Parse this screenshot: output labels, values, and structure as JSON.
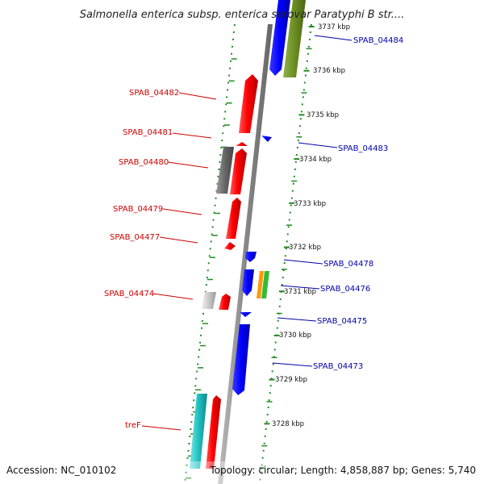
{
  "title": "Salmonella enterica subsp. enterica serovar Paratyphi B str....",
  "footer": {
    "accession": "Accession: NC_010102",
    "stats": "Topology: circular; Length: 4,858,887 bp; Genes: 5,740"
  },
  "colors": {
    "forward_strand": "#ff0000",
    "reverse_strand": "#0000ff",
    "forward_label": "#cc0000",
    "reverse_label": "#0000aa",
    "tick": "#228b22",
    "axis": "#888888",
    "olive": "#6b8e23",
    "cyan": "#20c0c0",
    "gray": "#666666",
    "light_gray": "#c8c8c8",
    "orange": "#ff9900",
    "green": "#33bb33"
  },
  "scale": {
    "unit": "kbp",
    "labels": [
      "3737 kbp",
      "3736 kbp",
      "3735 kbp",
      "3734 kbp",
      "3733 kbp",
      "3732 kbp",
      "3731 kbp",
      "3730 kbp",
      "3729 kbp",
      "3728 kbp"
    ]
  },
  "gene_labels": {
    "left": [
      "SPAB_04482",
      "SPAB_04481",
      "SPAB_04480",
      "SPAB_04479",
      "SPAB_04477",
      "SPAB_04474",
      "treF"
    ],
    "right": [
      "SPAB_04484",
      "SPAB_04483",
      "SPAB_04478",
      "SPAB_04476",
      "SPAB_04475",
      "SPAB_04473"
    ]
  }
}
